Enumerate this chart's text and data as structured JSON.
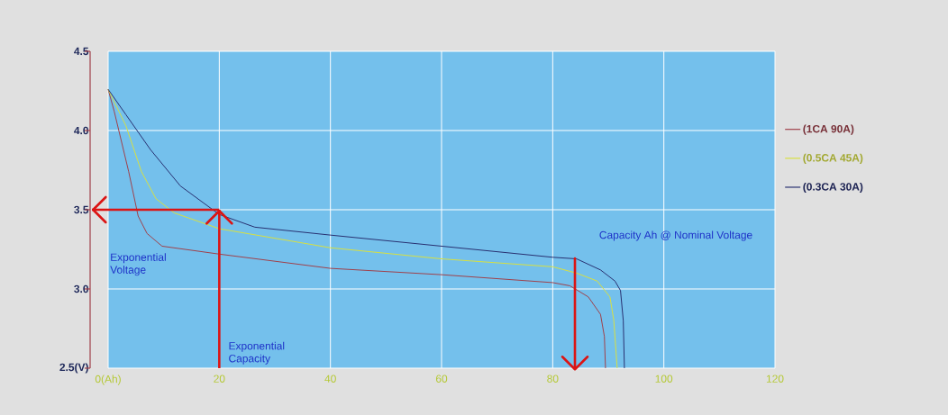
{
  "chart_data": {
    "type": "line",
    "series": [
      {
        "name": "(1CA  90A)",
        "color": "#a0404a",
        "x": [
          0,
          1.1,
          3.7,
          5.4,
          7,
          9.7,
          20,
          40,
          60,
          80,
          83.1,
          86.4,
          88.6,
          89.3,
          89.5
        ],
        "values": [
          4.26,
          4.12,
          3.74,
          3.46,
          3.35,
          3.27,
          3.22,
          3.13,
          3.09,
          3.04,
          3.02,
          2.95,
          2.84,
          2.7,
          2.5
        ]
      },
      {
        "name": "(0.5CA  45A)",
        "color": "#d8e040",
        "x": [
          0,
          3.2,
          6,
          8.6,
          11.9,
          20,
          40,
          60,
          80,
          84.3,
          88,
          90.3,
          91,
          91.6
        ],
        "values": [
          4.26,
          4.03,
          3.74,
          3.57,
          3.48,
          3.38,
          3.26,
          3.19,
          3.14,
          3.1,
          3.05,
          2.95,
          2.8,
          2.5
        ]
      },
      {
        "name": "(0.3CA  30A)",
        "color": "#283070",
        "x": [
          0,
          3.2,
          7.6,
          13,
          20,
          26.4,
          40,
          60,
          80,
          84.3,
          88.6,
          91.2,
          92.2,
          92.7,
          92.9
        ],
        "values": [
          4.26,
          4.1,
          3.88,
          3.65,
          3.47,
          3.39,
          3.34,
          3.27,
          3.2,
          3.19,
          3.12,
          3.05,
          2.99,
          2.8,
          2.5
        ]
      }
    ],
    "xlim": [
      0,
      120
    ],
    "xticks": [
      {
        "value": 0,
        "label": "0(Ah)"
      },
      20,
      40,
      60,
      80,
      100,
      120
    ],
    "ylim": [
      2.5,
      4.5
    ],
    "yticks": [
      {
        "value": 2.5,
        "label": "2.5(V)"
      },
      {
        "value": 3.0,
        "label": "3.0"
      },
      {
        "value": 3.5,
        "label": "3.5"
      },
      {
        "value": 4.0,
        "label": "4.0"
      },
      {
        "value": 4.5,
        "label": "4.5"
      }
    ],
    "ref_lines": [
      {
        "axis": "y",
        "value": 3.5,
        "color": "#dc1414"
      },
      {
        "axis": "x",
        "value": 20,
        "label": "Exponential Capacity",
        "color": "#dc1414"
      }
    ],
    "annotations": [
      "Exponential Voltage",
      {
        "text": "Capacity Ah @ Nominal Voltage",
        "x": 84,
        "y": 3.2
      }
    ],
    "grid": true,
    "legend": "right",
    "marker": "none",
    "line_style": "solid"
  }
}
